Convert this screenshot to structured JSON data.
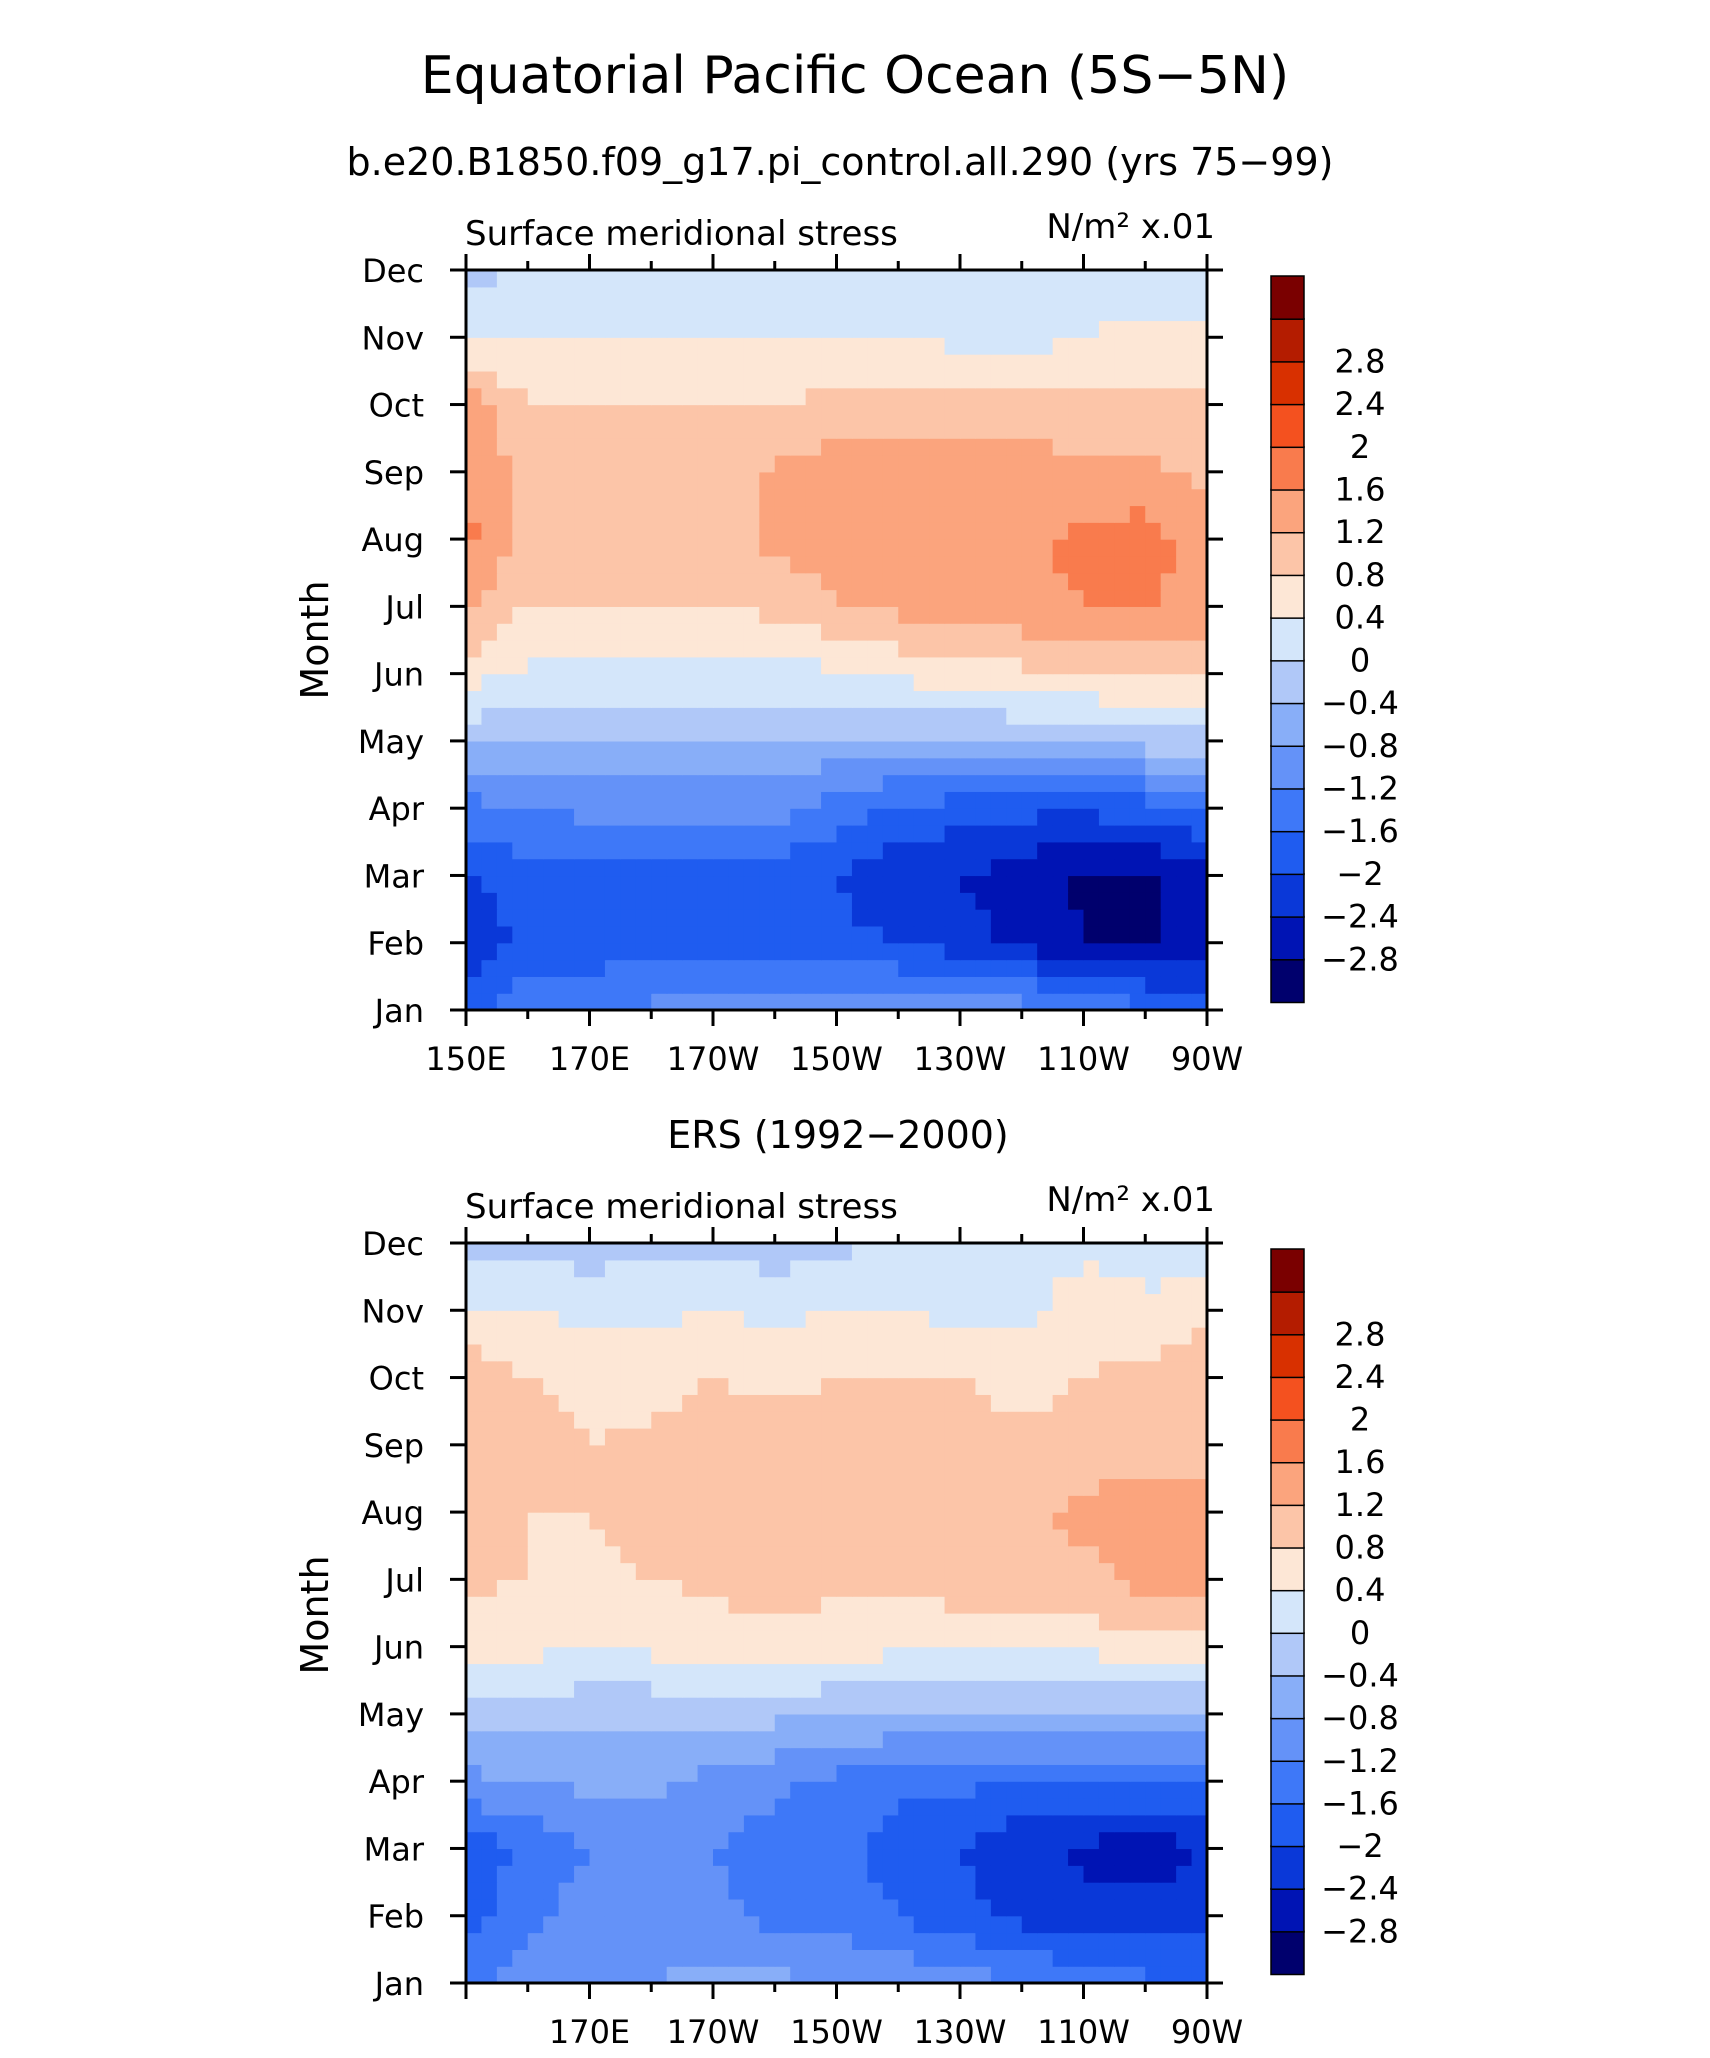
{
  "figure": {
    "title": "Equatorial Pacific Ocean (5S−5N)",
    "subtitle": "b.e20.B1850.f09_g17.pi_control.all.290 (yrs 75−99)"
  },
  "colorbar": {
    "colors": [
      "#00006d",
      "#0014b4",
      "#0a38d8",
      "#1f5cf0",
      "#3e78f8",
      "#6492f8",
      "#88aef8",
      "#b0c8f8",
      "#d4e6fa",
      "#fde7d6",
      "#fcc5a8",
      "#fba47d",
      "#f97b4d",
      "#f4511f",
      "#d83000",
      "#b41c00",
      "#7a0000"
    ],
    "labels": [
      "−2.8",
      "−2.4",
      "−2",
      "−1.6",
      "−1.2",
      "−0.8",
      "−0.4",
      "0",
      "0.4",
      "0.8",
      "1.2",
      "1.6",
      "2",
      "2.4",
      "2.8"
    ]
  },
  "chart_data": [
    {
      "type": "heatmap",
      "title": "Surface meridional stress",
      "units": "N/m² x.01",
      "ylabel": "Month",
      "xlabel": "",
      "x_ticks": [
        "150E",
        "170E",
        "170W",
        "150W",
        "130W",
        "110W",
        "90W"
      ],
      "y_ticks": [
        "Jan",
        "Feb",
        "Mar",
        "Apr",
        "May",
        "Jun",
        "Jul",
        "Aug",
        "Sep",
        "Oct",
        "Nov",
        "Dec"
      ],
      "x": [
        "150E",
        "160E",
        "170E",
        "180",
        "170W",
        "160W",
        "150W",
        "140W",
        "130W",
        "120W",
        "110W",
        "100W",
        "90W"
      ],
      "y": [
        "Jan",
        "Feb",
        "Mar",
        "Apr",
        "May",
        "Jun",
        "Jul",
        "Aug",
        "Sep",
        "Oct",
        "Nov",
        "Dec"
      ],
      "z": [
        [
          -1.9,
          -1.3,
          -1.2,
          -1.1,
          -1.0,
          -1.0,
          -1.0,
          -0.9,
          -0.9,
          -1.0,
          -1.2,
          -1.5,
          -1.9
        ],
        [
          -2.3,
          -1.9,
          -1.9,
          -1.8,
          -1.8,
          -1.8,
          -1.9,
          -2.0,
          -2.2,
          -2.5,
          -2.8,
          -2.9,
          -2.5
        ],
        [
          -2.0,
          -1.8,
          -1.8,
          -1.8,
          -1.8,
          -1.8,
          -2.0,
          -2.3,
          -2.4,
          -2.6,
          -2.9,
          -2.9,
          -2.5
        ],
        [
          -1.4,
          -1.2,
          -1.1,
          -1.0,
          -1.0,
          -1.0,
          -1.4,
          -1.7,
          -1.8,
          -1.9,
          -1.9,
          -1.8,
          -1.6
        ],
        [
          -0.3,
          -0.3,
          -0.4,
          -0.5,
          -0.5,
          -0.5,
          -0.5,
          -0.5,
          -0.4,
          -0.4,
          -0.3,
          -0.2,
          -0.2
        ],
        [
          0.6,
          0.3,
          0.3,
          0.3,
          0.3,
          0.3,
          0.3,
          0.5,
          0.6,
          0.7,
          0.8,
          0.8,
          0.9
        ],
        [
          1.3,
          0.8,
          0.8,
          0.8,
          0.8,
          0.9,
          1.2,
          1.3,
          1.4,
          1.5,
          1.6,
          1.7,
          1.4
        ],
        [
          1.7,
          1.0,
          1.0,
          1.0,
          1.0,
          1.3,
          1.4,
          1.4,
          1.4,
          1.5,
          1.7,
          1.8,
          1.3
        ],
        [
          1.6,
          1.0,
          1.0,
          1.0,
          0.9,
          1.3,
          1.4,
          1.4,
          1.4,
          1.4,
          1.3,
          1.3,
          1.1
        ],
        [
          1.4,
          0.8,
          0.8,
          0.8,
          0.8,
          0.8,
          0.9,
          0.9,
          0.9,
          0.9,
          1.0,
          0.9,
          0.9
        ],
        [
          0.4,
          0.4,
          0.4,
          0.4,
          0.4,
          0.4,
          0.4,
          0.4,
          0.3,
          0.2,
          0.4,
          0.5,
          0.6
        ],
        [
          -0.2,
          0.1,
          0.2,
          0.2,
          0.3,
          0.3,
          0.3,
          0.2,
          0.1,
          0.1,
          0.2,
          0.1,
          -0.1
        ]
      ],
      "levels": [
        -2.8,
        -2.4,
        -2,
        -1.6,
        -1.2,
        -0.8,
        -0.4,
        0,
        0.4,
        0.8,
        1.2,
        1.6,
        2,
        2.4,
        2.8
      ]
    },
    {
      "type": "heatmap",
      "caption": "ERS (1992−2000)",
      "title": "Surface meridional stress",
      "units": "N/m² x.01",
      "ylabel": "Month",
      "xlabel": "",
      "x_ticks": [
        "170E",
        "170W",
        "150W",
        "130W",
        "110W",
        "90W"
      ],
      "y_ticks": [
        "Jan",
        "Feb",
        "Mar",
        "Apr",
        "May",
        "Jun",
        "Jul",
        "Aug",
        "Sep",
        "Oct",
        "Nov",
        "Dec"
      ],
      "x": [
        "150E",
        "160E",
        "170E",
        "180",
        "170W",
        "160W",
        "150W",
        "140W",
        "130W",
        "120W",
        "110W",
        "100W",
        "90W"
      ],
      "y": [
        "Jan",
        "Feb",
        "Mar",
        "Apr",
        "May",
        "Jun",
        "Jul",
        "Aug",
        "Sep",
        "Oct",
        "Nov",
        "Dec"
      ],
      "z": [
        [
          -1.3,
          -1.0,
          -0.9,
          -0.8,
          -0.7,
          -0.7,
          -0.8,
          -0.9,
          -1.0,
          -1.2,
          -1.4,
          -1.5,
          -1.6
        ],
        [
          -1.8,
          -1.3,
          -1.0,
          -0.9,
          -1.1,
          -1.3,
          -1.4,
          -1.6,
          -1.9,
          -2.1,
          -2.2,
          -2.3,
          -2.2
        ],
        [
          -1.9,
          -1.5,
          -1.2,
          -1.0,
          -1.2,
          -1.4,
          -1.5,
          -1.8,
          -2.0,
          -2.3,
          -2.5,
          -2.6,
          -2.4
        ],
        [
          -0.9,
          -0.8,
          -0.7,
          -0.7,
          -0.9,
          -1.1,
          -1.3,
          -1.5,
          -1.5,
          -1.6,
          -1.6,
          -1.6,
          -1.5
        ],
        [
          -0.2,
          -0.2,
          -0.3,
          -0.3,
          -0.3,
          -0.3,
          -0.4,
          -0.4,
          -0.4,
          -0.5,
          -0.5,
          -0.5,
          -0.4
        ],
        [
          0.6,
          0.5,
          0.4,
          0.5,
          0.6,
          0.7,
          0.6,
          0.5,
          0.5,
          0.5,
          0.5,
          0.7,
          0.5
        ],
        [
          0.9,
          0.8,
          0.7,
          0.8,
          0.9,
          0.9,
          0.9,
          0.9,
          1.0,
          1.0,
          1.1,
          1.3,
          1.3
        ],
        [
          1.0,
          0.8,
          0.8,
          0.9,
          1.0,
          0.9,
          1.0,
          1.0,
          1.1,
          1.1,
          1.3,
          1.4,
          1.3
        ],
        [
          1.2,
          0.9,
          0.8,
          0.9,
          1.0,
          1.0,
          1.0,
          1.0,
          1.0,
          0.9,
          1.0,
          1.0,
          1.1
        ],
        [
          1.1,
          0.8,
          0.7,
          0.6,
          0.8,
          0.7,
          0.8,
          0.8,
          0.8,
          0.6,
          0.8,
          0.9,
          1.2
        ],
        [
          0.4,
          0.4,
          0.3,
          0.3,
          0.4,
          0.3,
          0.4,
          0.4,
          0.3,
          0.3,
          0.6,
          0.5,
          0.7
        ],
        [
          -0.2,
          -0.1,
          -0.2,
          -0.1,
          -0.1,
          -0.2,
          -0.1,
          0.1,
          0.1,
          0.2,
          0.3,
          0.2,
          0.1
        ]
      ],
      "levels": [
        -2.8,
        -2.4,
        -2,
        -1.6,
        -1.2,
        -0.8,
        -0.4,
        0,
        0.4,
        0.8,
        1.2,
        1.6,
        2,
        2.4,
        2.8
      ]
    }
  ]
}
